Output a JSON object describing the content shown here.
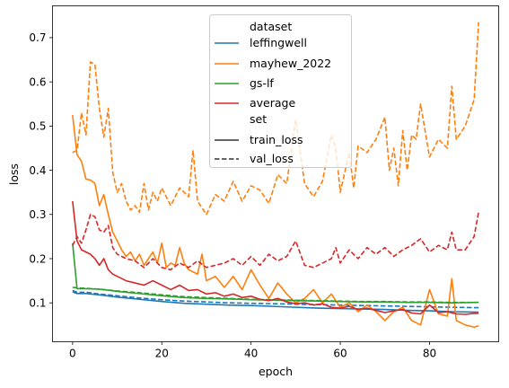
{
  "chart_data": {
    "type": "line",
    "xlabel": "epoch",
    "ylabel": "loss",
    "xlim": [
      -4.5,
      95.5
    ],
    "ylim": [
      0.012,
      0.772
    ],
    "xticks": [
      0,
      20,
      40,
      60,
      80
    ],
    "yticks": [
      0.1,
      0.2,
      0.3,
      0.4,
      0.5,
      0.6,
      0.7
    ],
    "grid": false,
    "legend": {
      "placement": "top-center",
      "hue_title": "dataset",
      "style_title": "set",
      "hue_entries": [
        {
          "name": "leffingwell",
          "color": "#1f77b4"
        },
        {
          "name": "mayhew_2022",
          "color": "#ff7f0e"
        },
        {
          "name": "gs-lf",
          "color": "#2ca02c"
        },
        {
          "name": "average",
          "color": "#d62728"
        }
      ],
      "style_entries": [
        {
          "name": "train_loss",
          "dash": "solid"
        },
        {
          "name": "val_loss",
          "dash": "dashed"
        }
      ]
    },
    "series": [
      {
        "dataset": "leffingwell",
        "set": "train_loss",
        "color": "#1f77b4",
        "dash": "solid",
        "x": [
          0,
          1,
          3,
          6,
          10,
          15,
          20,
          25,
          30,
          35,
          40,
          45,
          50,
          55,
          60,
          65,
          70,
          75,
          80,
          85,
          91
        ],
        "y": [
          0.125,
          0.121,
          0.121,
          0.118,
          0.113,
          0.108,
          0.103,
          0.099,
          0.097,
          0.095,
          0.094,
          0.092,
          0.09,
          0.088,
          0.087,
          0.086,
          0.085,
          0.083,
          0.082,
          0.08,
          0.079
        ]
      },
      {
        "dataset": "leffingwell",
        "set": "val_loss",
        "color": "#1f77b4",
        "dash": "dashed",
        "x": [
          0,
          1,
          3,
          6,
          10,
          15,
          20,
          25,
          30,
          35,
          40,
          45,
          50,
          55,
          60,
          65,
          70,
          75,
          80,
          85,
          91
        ],
        "y": [
          0.128,
          0.124,
          0.124,
          0.12,
          0.116,
          0.111,
          0.107,
          0.104,
          0.102,
          0.1,
          0.099,
          0.098,
          0.097,
          0.096,
          0.095,
          0.094,
          0.093,
          0.092,
          0.091,
          0.09,
          0.089
        ]
      },
      {
        "dataset": "mayhew_2022",
        "set": "train_loss",
        "color": "#ff7f0e",
        "dash": "solid",
        "x": [
          0,
          1,
          2,
          3,
          4,
          5,
          6,
          7,
          8,
          9,
          10,
          11,
          12,
          13,
          14,
          15,
          16,
          17,
          18,
          19,
          20,
          21,
          22,
          23,
          24,
          25,
          26,
          27,
          28,
          29,
          30,
          32,
          34,
          36,
          38,
          40,
          42,
          44,
          46,
          48,
          50,
          52,
          54,
          56,
          58,
          60,
          62,
          64,
          66,
          68,
          70,
          72,
          74,
          76,
          78,
          80,
          82,
          84,
          85,
          86,
          88,
          90,
          91
        ],
        "y": [
          0.525,
          0.435,
          0.42,
          0.38,
          0.378,
          0.37,
          0.32,
          0.345,
          0.3,
          0.26,
          0.24,
          0.22,
          0.205,
          0.215,
          0.195,
          0.21,
          0.185,
          0.2,
          0.215,
          0.19,
          0.235,
          0.18,
          0.19,
          0.185,
          0.225,
          0.19,
          0.175,
          0.17,
          0.165,
          0.21,
          0.15,
          0.16,
          0.135,
          0.16,
          0.13,
          0.175,
          0.14,
          0.11,
          0.145,
          0.12,
          0.1,
          0.11,
          0.13,
          0.1,
          0.12,
          0.09,
          0.1,
          0.08,
          0.095,
          0.08,
          0.06,
          0.08,
          0.09,
          0.06,
          0.05,
          0.13,
          0.075,
          0.07,
          0.155,
          0.06,
          0.05,
          0.045,
          0.048
        ]
      },
      {
        "dataset": "mayhew_2022",
        "set": "val_loss",
        "color": "#ff7f0e",
        "dash": "dashed",
        "x": [
          0,
          1,
          2,
          3,
          4,
          5,
          6,
          7,
          8,
          9,
          10,
          11,
          12,
          13,
          14,
          15,
          16,
          17,
          18,
          19,
          20,
          22,
          24,
          26,
          27,
          28,
          30,
          32,
          34,
          36,
          38,
          40,
          42,
          44,
          46,
          48,
          50,
          52,
          54,
          56,
          58,
          59,
          60,
          62,
          63,
          64,
          66,
          68,
          70,
          71,
          72,
          73,
          74,
          75,
          76,
          77,
          78,
          80,
          82,
          84,
          85,
          86,
          88,
          90,
          91
        ],
        "y": [
          0.44,
          0.445,
          0.53,
          0.48,
          0.645,
          0.64,
          0.54,
          0.475,
          0.54,
          0.395,
          0.35,
          0.37,
          0.33,
          0.31,
          0.32,
          0.305,
          0.37,
          0.31,
          0.35,
          0.33,
          0.36,
          0.32,
          0.36,
          0.34,
          0.445,
          0.33,
          0.3,
          0.345,
          0.33,
          0.375,
          0.33,
          0.365,
          0.355,
          0.325,
          0.39,
          0.37,
          0.515,
          0.37,
          0.34,
          0.375,
          0.48,
          0.45,
          0.35,
          0.44,
          0.36,
          0.455,
          0.44,
          0.47,
          0.52,
          0.4,
          0.45,
          0.365,
          0.49,
          0.4,
          0.48,
          0.47,
          0.55,
          0.43,
          0.47,
          0.45,
          0.59,
          0.47,
          0.5,
          0.56,
          0.735
        ]
      },
      {
        "dataset": "gs-lf",
        "set": "train_loss",
        "color": "#2ca02c",
        "dash": "solid",
        "x": [
          0,
          1,
          3,
          6,
          10,
          15,
          20,
          25,
          30,
          35,
          40,
          45,
          50,
          55,
          60,
          65,
          70,
          75,
          80,
          85,
          91
        ],
        "y": [
          0.235,
          0.132,
          0.132,
          0.131,
          0.126,
          0.121,
          0.116,
          0.112,
          0.11,
          0.109,
          0.107,
          0.106,
          0.105,
          0.104,
          0.103,
          0.102,
          0.102,
          0.101,
          0.101,
          0.1,
          0.101
        ]
      },
      {
        "dataset": "gs-lf",
        "set": "val_loss",
        "color": "#2ca02c",
        "dash": "dashed",
        "x": [
          0,
          1,
          3,
          6,
          10,
          15,
          20,
          25,
          30,
          35,
          40,
          45,
          50,
          55,
          60,
          65,
          70,
          75,
          80,
          85,
          91
        ],
        "y": [
          0.135,
          0.134,
          0.133,
          0.131,
          0.127,
          0.123,
          0.118,
          0.114,
          0.112,
          0.11,
          0.108,
          0.107,
          0.106,
          0.105,
          0.104,
          0.103,
          0.103,
          0.102,
          0.102,
          0.101,
          0.101
        ]
      },
      {
        "dataset": "average",
        "set": "train_loss",
        "color": "#d62728",
        "dash": "solid",
        "x": [
          0,
          1,
          2,
          3,
          4,
          5,
          6,
          7,
          8,
          9,
          10,
          12,
          14,
          16,
          18,
          20,
          22,
          24,
          26,
          28,
          30,
          32,
          34,
          36,
          38,
          40,
          42,
          44,
          46,
          48,
          50,
          52,
          54,
          56,
          58,
          60,
          62,
          64,
          66,
          68,
          70,
          72,
          74,
          76,
          78,
          80,
          82,
          84,
          86,
          88,
          90,
          91
        ],
        "y": [
          0.33,
          0.24,
          0.22,
          0.215,
          0.21,
          0.2,
          0.185,
          0.2,
          0.175,
          0.165,
          0.16,
          0.15,
          0.145,
          0.14,
          0.15,
          0.14,
          0.13,
          0.14,
          0.128,
          0.13,
          0.12,
          0.123,
          0.115,
          0.12,
          0.112,
          0.115,
          0.108,
          0.105,
          0.11,
          0.102,
          0.098,
          0.1,
          0.095,
          0.098,
          0.09,
          0.088,
          0.092,
          0.085,
          0.088,
          0.083,
          0.078,
          0.082,
          0.085,
          0.077,
          0.075,
          0.095,
          0.078,
          0.08,
          0.075,
          0.074,
          0.076,
          0.076
        ]
      },
      {
        "dataset": "average",
        "set": "val_loss",
        "color": "#d62728",
        "dash": "dashed",
        "x": [
          0,
          1,
          2,
          3,
          4,
          5,
          6,
          7,
          8,
          9,
          10,
          12,
          14,
          16,
          18,
          20,
          22,
          24,
          26,
          28,
          30,
          32,
          34,
          36,
          38,
          40,
          42,
          44,
          46,
          48,
          50,
          52,
          54,
          56,
          58,
          59,
          60,
          62,
          64,
          66,
          68,
          70,
          72,
          74,
          76,
          78,
          80,
          82,
          84,
          85,
          86,
          88,
          90,
          91
        ],
        "y": [
          0.23,
          0.25,
          0.235,
          0.265,
          0.3,
          0.295,
          0.265,
          0.26,
          0.275,
          0.225,
          0.21,
          0.2,
          0.195,
          0.18,
          0.2,
          0.18,
          0.175,
          0.19,
          0.18,
          0.195,
          0.18,
          0.185,
          0.19,
          0.2,
          0.185,
          0.205,
          0.185,
          0.21,
          0.195,
          0.205,
          0.24,
          0.185,
          0.18,
          0.19,
          0.2,
          0.225,
          0.19,
          0.22,
          0.2,
          0.225,
          0.21,
          0.225,
          0.205,
          0.22,
          0.23,
          0.245,
          0.215,
          0.23,
          0.22,
          0.26,
          0.22,
          0.22,
          0.25,
          0.305
        ]
      }
    ]
  }
}
